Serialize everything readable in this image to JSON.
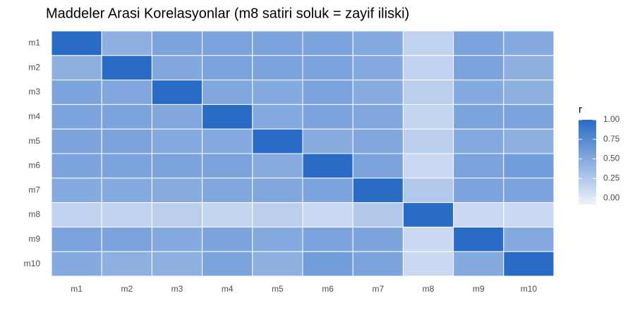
{
  "chart_data": {
    "type": "heatmap",
    "title": "Maddeler Arasi Korelasyonlar (m8 satiri soluk = zayif iliski)",
    "x_categories": [
      "m1",
      "m2",
      "m3",
      "m4",
      "m5",
      "m6",
      "m7",
      "m8",
      "m9",
      "m10"
    ],
    "y_categories": [
      "m1",
      "m2",
      "m3",
      "m4",
      "m5",
      "m6",
      "m7",
      "m8",
      "m9",
      "m10"
    ],
    "values": [
      [
        1,
        0.45,
        0.55,
        0.55,
        0.55,
        0.55,
        0.5,
        0.18,
        0.55,
        0.5
      ],
      [
        0.45,
        1,
        0.52,
        0.55,
        0.55,
        0.55,
        0.5,
        0.17,
        0.55,
        0.45
      ],
      [
        0.55,
        0.52,
        1,
        0.52,
        0.5,
        0.55,
        0.48,
        0.2,
        0.5,
        0.45
      ],
      [
        0.55,
        0.55,
        0.52,
        1,
        0.5,
        0.55,
        0.52,
        0.15,
        0.55,
        0.55
      ],
      [
        0.55,
        0.55,
        0.5,
        0.5,
        1,
        0.48,
        0.52,
        0.2,
        0.5,
        0.45
      ],
      [
        0.55,
        0.55,
        0.55,
        0.55,
        0.48,
        1,
        0.55,
        0.12,
        0.55,
        0.6
      ],
      [
        0.5,
        0.5,
        0.48,
        0.52,
        0.52,
        0.55,
        1,
        0.25,
        0.55,
        0.55
      ],
      [
        0.18,
        0.17,
        0.2,
        0.15,
        0.2,
        0.12,
        0.25,
        1,
        0.12,
        0.12
      ],
      [
        0.55,
        0.55,
        0.5,
        0.55,
        0.5,
        0.55,
        0.55,
        0.12,
        1,
        0.5
      ],
      [
        0.5,
        0.45,
        0.45,
        0.55,
        0.45,
        0.6,
        0.55,
        0.12,
        0.5,
        1
      ]
    ],
    "legend_title": "r",
    "low_color": "#eef2fb",
    "high_color": "#2a6bc6",
    "clim": [
      -0.08,
      1
    ],
    "cticks": [
      {
        "value": 1,
        "label": "1.00"
      },
      {
        "value": 0.75,
        "label": "0.75"
      },
      {
        "value": 0.5,
        "label": "0.50"
      },
      {
        "value": 0.25,
        "label": "0.25"
      },
      {
        "value": 0,
        "label": "0.00"
      }
    ]
  }
}
